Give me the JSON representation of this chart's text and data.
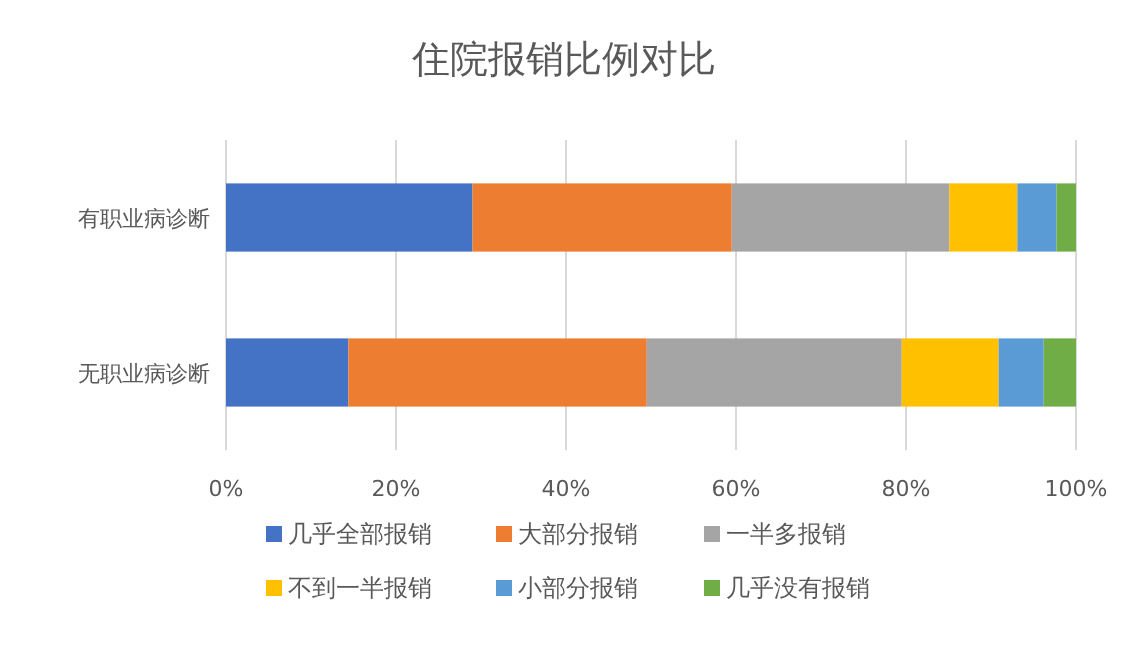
{
  "chart_data": {
    "type": "bar",
    "title": "住院报销比例对比",
    "orientation": "horizontal",
    "stacked": true,
    "categories": [
      "有职业病诊断",
      "无职业病诊断"
    ],
    "series": [
      {
        "name": "几乎全部报销",
        "color": "#4472c4",
        "values": [
          29.0,
          14.4
        ]
      },
      {
        "name": "大部分报销",
        "color": "#ed7d31",
        "values": [
          30.5,
          35.1
        ]
      },
      {
        "name": "一半多报销",
        "color": "#a5a5a5",
        "values": [
          25.6,
          30.0
        ]
      },
      {
        "name": "不到一半报销",
        "color": "#ffc000",
        "values": [
          8.0,
          11.4
        ]
      },
      {
        "name": "小部分报销",
        "color": "#5b9bd5",
        "values": [
          4.6,
          5.3
        ]
      },
      {
        "name": "几乎没有报销",
        "color": "#70ad47",
        "values": [
          2.3,
          3.8
        ]
      }
    ],
    "xlim": [
      0,
      100
    ],
    "xticks": [
      {
        "value": 0,
        "label": "0%"
      },
      {
        "value": 20,
        "label": "20%"
      },
      {
        "value": 40,
        "label": "40%"
      },
      {
        "value": 60,
        "label": "60%"
      },
      {
        "value": 80,
        "label": "80%"
      },
      {
        "value": 100,
        "label": "100%"
      }
    ],
    "grid": "x",
    "legend": "bottom"
  }
}
